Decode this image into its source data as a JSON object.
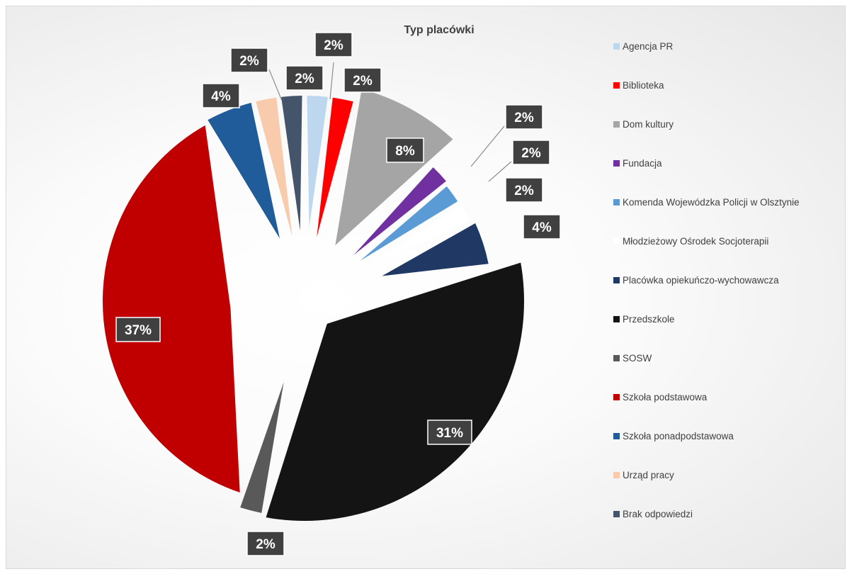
{
  "chart_data": {
    "type": "pie",
    "title": "Typ placówki",
    "legend_position": "right",
    "slices": [
      {
        "name": "Agencja PR",
        "value": 2,
        "label": "2%",
        "color": "#BDD7EE"
      },
      {
        "name": "Biblioteka",
        "value": 2,
        "label": "2%",
        "color": "#FF0000"
      },
      {
        "name": "Dom kultury",
        "value": 8,
        "label": "8%",
        "color": "#A5A5A5"
      },
      {
        "name": "Fundacja",
        "value": 2,
        "label": "2%",
        "color": "#7030A0"
      },
      {
        "name": "Komenda Wojewódzka Policji w Olsztynie",
        "value": 2,
        "label": "2%",
        "color": "#5B9BD5"
      },
      {
        "name": "Młodzieżowy Ośrodek Socjoterapii",
        "value": 2,
        "label": "2%",
        "color": "#FFFFFF"
      },
      {
        "name": "Placówka opiekuńczo-wychowawcza",
        "value": 4,
        "label": "4%",
        "color": "#203864"
      },
      {
        "name": "Przedszkole",
        "value": 31,
        "label": "31%",
        "color": "#141414"
      },
      {
        "name": "SOSW",
        "value": 2,
        "label": "2%",
        "color": "#595959"
      },
      {
        "name": "Szkoła podstawowa",
        "value": 37,
        "label": "37%",
        "color": "#C00000"
      },
      {
        "name": "Szkoła ponadpodstawowa",
        "value": 4,
        "label": "4%",
        "color": "#1F5C99"
      },
      {
        "name": "Urząd pracy",
        "value": 2,
        "label": "2%",
        "color": "#F8CBAD"
      },
      {
        "name": "Brak odpowiedzi",
        "value": 2,
        "label": "2%",
        "color": "#44546A"
      }
    ]
  }
}
